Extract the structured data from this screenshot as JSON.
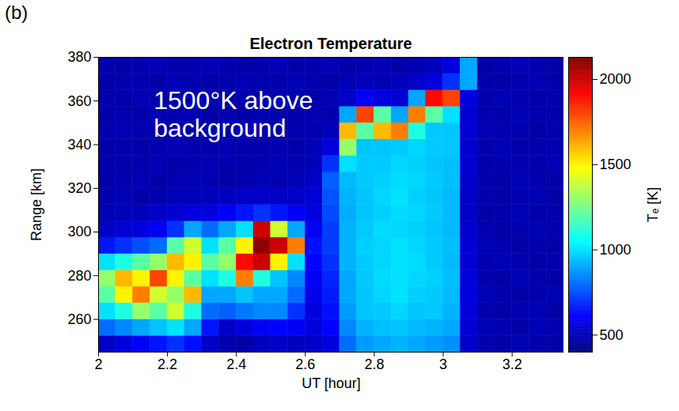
{
  "chart_data": {
    "type": "heatmap",
    "panel": "(b)",
    "title": "Electron Temperature",
    "x_label": "UT [hour]",
    "y_label": "Range [km]",
    "xlim": [
      2,
      3.35
    ],
    "xticks": [
      2,
      2.2,
      2.4,
      2.6,
      2.8,
      3,
      3.2
    ],
    "ylim": [
      245,
      380
    ],
    "yticks": [
      260,
      280,
      300,
      320,
      340,
      360,
      380
    ],
    "x": [
      2.025,
      2.075,
      2.125,
      2.175,
      2.225,
      2.275,
      2.325,
      2.375,
      2.425,
      2.475,
      2.525,
      2.575,
      2.625,
      2.675,
      2.725,
      2.775,
      2.825,
      2.875,
      2.925,
      2.975,
      3.025,
      3.075,
      3.125,
      3.175,
      3.225,
      3.275,
      3.325
    ],
    "y": [
      248.75,
      256.25,
      263.75,
      271.25,
      278.75,
      286.25,
      293.75,
      301.25,
      308.75,
      316.25,
      323.75,
      331.25,
      338.75,
      346.25,
      353.75,
      361.25,
      368.75,
      376.25
    ],
    "values": [
      [
        520,
        560,
        600,
        650,
        700,
        640,
        520,
        480,
        470,
        500,
        520,
        500,
        520,
        560,
        800,
        880,
        900,
        920,
        900,
        880,
        860,
        520,
        480,
        470,
        490,
        480,
        470
      ],
      [
        800,
        850,
        900,
        950,
        1000,
        900,
        650,
        520,
        560,
        600,
        620,
        600,
        560,
        620,
        850,
        920,
        940,
        950,
        930,
        920,
        900,
        540,
        490,
        480,
        470,
        490,
        480
      ],
      [
        1000,
        1100,
        1300,
        1200,
        1400,
        1100,
        800,
        780,
        820,
        850,
        850,
        700,
        560,
        640,
        880,
        950,
        960,
        980,
        950,
        960,
        920,
        550,
        480,
        470,
        480,
        490,
        470
      ],
      [
        1200,
        1500,
        1700,
        1400,
        1300,
        1600,
        900,
        900,
        950,
        900,
        900,
        800,
        580,
        660,
        900,
        950,
        980,
        1000,
        970,
        960,
        930,
        560,
        490,
        480,
        470,
        480,
        490
      ],
      [
        1300,
        1600,
        1500,
        1800,
        1500,
        1200,
        1000,
        1100,
        1700,
        1100,
        950,
        850,
        600,
        680,
        900,
        960,
        990,
        1000,
        980,
        970,
        940,
        550,
        480,
        470,
        490,
        480,
        470
      ],
      [
        1000,
        1100,
        1200,
        1300,
        1600,
        1500,
        1200,
        1300,
        1900,
        2000,
        1500,
        1000,
        620,
        700,
        920,
        960,
        980,
        1000,
        990,
        960,
        930,
        540,
        480,
        490,
        480,
        470,
        480
      ],
      [
        650,
        700,
        750,
        800,
        1200,
        1400,
        1000,
        1200,
        1500,
        2100,
        2000,
        1700,
        640,
        720,
        920,
        970,
        980,
        1000,
        980,
        960,
        940,
        540,
        490,
        480,
        470,
        480,
        470
      ],
      [
        520,
        540,
        560,
        600,
        700,
        900,
        800,
        900,
        1000,
        2000,
        1400,
        900,
        600,
        720,
        920,
        960,
        990,
        980,
        970,
        950,
        930,
        530,
        480,
        470,
        480,
        490,
        480
      ],
      [
        490,
        500,
        500,
        520,
        540,
        560,
        560,
        600,
        650,
        700,
        650,
        600,
        560,
        740,
        910,
        950,
        970,
        990,
        980,
        960,
        930,
        520,
        470,
        480,
        490,
        470,
        480
      ],
      [
        480,
        490,
        470,
        480,
        500,
        490,
        500,
        510,
        520,
        520,
        520,
        520,
        540,
        760,
        920,
        950,
        980,
        1000,
        970,
        950,
        930,
        520,
        480,
        470,
        480,
        490,
        470
      ],
      [
        470,
        480,
        490,
        470,
        480,
        490,
        480,
        470,
        480,
        490,
        480,
        490,
        520,
        780,
        930,
        960,
        970,
        990,
        980,
        960,
        940,
        530,
        480,
        470,
        490,
        480,
        470
      ],
      [
        480,
        470,
        480,
        490,
        470,
        480,
        490,
        480,
        470,
        480,
        490,
        480,
        500,
        700,
        1000,
        960,
        960,
        980,
        970,
        950,
        940,
        540,
        470,
        480,
        480,
        470,
        490
      ],
      [
        470,
        480,
        470,
        480,
        490,
        480,
        470,
        490,
        480,
        470,
        480,
        470,
        490,
        560,
        1300,
        950,
        950,
        960,
        980,
        960,
        950,
        530,
        480,
        490,
        470,
        480,
        480
      ],
      [
        480,
        490,
        480,
        470,
        480,
        470,
        480,
        470,
        490,
        480,
        470,
        480,
        480,
        500,
        1600,
        1200,
        1600,
        1700,
        1100,
        960,
        950,
        540,
        490,
        480,
        480,
        470,
        480
      ],
      [
        470,
        480,
        470,
        490,
        480,
        490,
        470,
        480,
        470,
        490,
        480,
        470,
        490,
        480,
        900,
        1800,
        1200,
        900,
        1700,
        1200,
        1000,
        540,
        480,
        470,
        490,
        480,
        470
      ],
      [
        480,
        470,
        490,
        480,
        470,
        480,
        490,
        470,
        480,
        470,
        490,
        480,
        470,
        490,
        520,
        600,
        560,
        540,
        900,
        1900,
        1800,
        560,
        480,
        490,
        480,
        470,
        480
      ],
      [
        470,
        480,
        480,
        470,
        490,
        480,
        470,
        480,
        490,
        480,
        470,
        490,
        480,
        470,
        490,
        500,
        490,
        500,
        520,
        560,
        700,
        900,
        480,
        470,
        480,
        490,
        470
      ],
      [
        480,
        470,
        480,
        490,
        470,
        480,
        490,
        480,
        470,
        480,
        490,
        470,
        480,
        490,
        470,
        480,
        490,
        470,
        480,
        500,
        560,
        900,
        470,
        480,
        490,
        480,
        470
      ]
    ],
    "colorbar": {
      "label": "Tₑ [K]",
      "lim": [
        400,
        2130
      ],
      "ticks": [
        500,
        1000,
        1500,
        2000
      ]
    },
    "annotations": [
      {
        "text": "1500°K above\nbackground",
        "x": 2.16,
        "y": 354
      }
    ]
  }
}
